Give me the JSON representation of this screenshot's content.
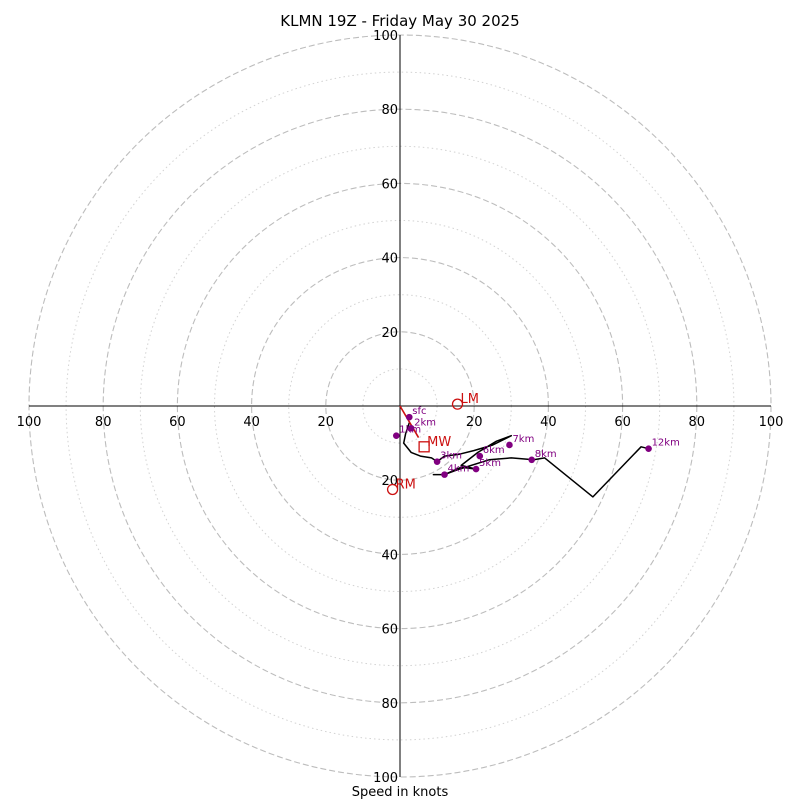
{
  "chart_data": {
    "type": "scatter",
    "subtype": "hodograph",
    "title": "KLMN 19Z - Friday May 30 2025",
    "xlabel": "Speed in knots",
    "range": [
      -100,
      100
    ],
    "ring_ticks": [
      20,
      40,
      60,
      80,
      100
    ],
    "major_rings": [
      20,
      40,
      60,
      80,
      100
    ],
    "minor_rings": [
      10,
      30,
      50,
      70,
      90
    ],
    "axis_tick_labels": {
      "top": [
        "20",
        "40",
        "60",
        "80",
        "100"
      ],
      "bottom": [
        "20",
        "40",
        "60",
        "80",
        "100"
      ],
      "left": [
        "20",
        "40",
        "60",
        "80",
        "100"
      ],
      "right": [
        "20",
        "40",
        "60",
        "80",
        "100"
      ]
    },
    "units": "knots",
    "hodograph_trace": [
      [
        2.5,
        -4.5
      ],
      [
        1.5,
        -7.5
      ],
      [
        1.0,
        -10.0
      ],
      [
        3.0,
        -12.5
      ],
      [
        5.5,
        -13.5
      ],
      [
        8.5,
        -14.0
      ],
      [
        10.0,
        -15.0
      ],
      [
        12.0,
        -13.5
      ],
      [
        16.0,
        -13.0
      ],
      [
        20.0,
        -12.0
      ],
      [
        25.0,
        -10.5
      ],
      [
        30.0,
        -8.0
      ],
      [
        26.0,
        -9.5
      ],
      [
        21.0,
        -12.5
      ],
      [
        16.5,
        -16.0
      ],
      [
        20.5,
        -17.0
      ],
      [
        16.5,
        -16.5
      ],
      [
        12.0,
        -18.5
      ],
      [
        9.0,
        -18.5
      ],
      [
        12.0,
        -18.5
      ],
      [
        16.0,
        -17.0
      ],
      [
        24.0,
        -14.5
      ],
      [
        30.0,
        -14.0
      ],
      [
        36.0,
        -14.5
      ],
      [
        39.0,
        -14.0
      ],
      [
        52.0,
        -24.5
      ],
      [
        65.0,
        -11.0
      ],
      [
        67.0,
        -11.5
      ]
    ],
    "height_points": [
      {
        "label": "sfc",
        "u": 2.5,
        "v": -3.0
      },
      {
        "label": "2km",
        "u": 3.0,
        "v": -6.0
      },
      {
        "label": "1km",
        "u": -1.0,
        "v": -8.0
      },
      {
        "label": "3km",
        "u": 10.0,
        "v": -15.0
      },
      {
        "label": "4km",
        "u": 12.0,
        "v": -18.5
      },
      {
        "label": "5km",
        "u": 20.5,
        "v": -17.0
      },
      {
        "label": "6km",
        "u": 21.5,
        "v": -13.5
      },
      {
        "label": "7km",
        "u": 29.5,
        "v": -10.5
      },
      {
        "label": "8km",
        "u": 35.5,
        "v": -14.5
      },
      {
        "label": "12km",
        "u": 67.0,
        "v": -11.5
      }
    ],
    "storm_motion_vector": [
      [
        0,
        0
      ],
      [
        5.0,
        -8.5
      ]
    ],
    "storm_motions": [
      {
        "label": "LM",
        "u": 15.5,
        "v": 0.5,
        "marker": "circle"
      },
      {
        "label": "MW",
        "u": 6.5,
        "v": -11.0,
        "marker": "square"
      },
      {
        "label": "RM",
        "u": -2.0,
        "v": -22.5,
        "marker": "circle"
      }
    ],
    "colors": {
      "trace": "#000000",
      "height_points": "#800080",
      "storm_motion": "#cc1111",
      "major_ring": "#bdbdbd",
      "minor_ring": "#d2d2d2"
    },
    "grid": true
  }
}
